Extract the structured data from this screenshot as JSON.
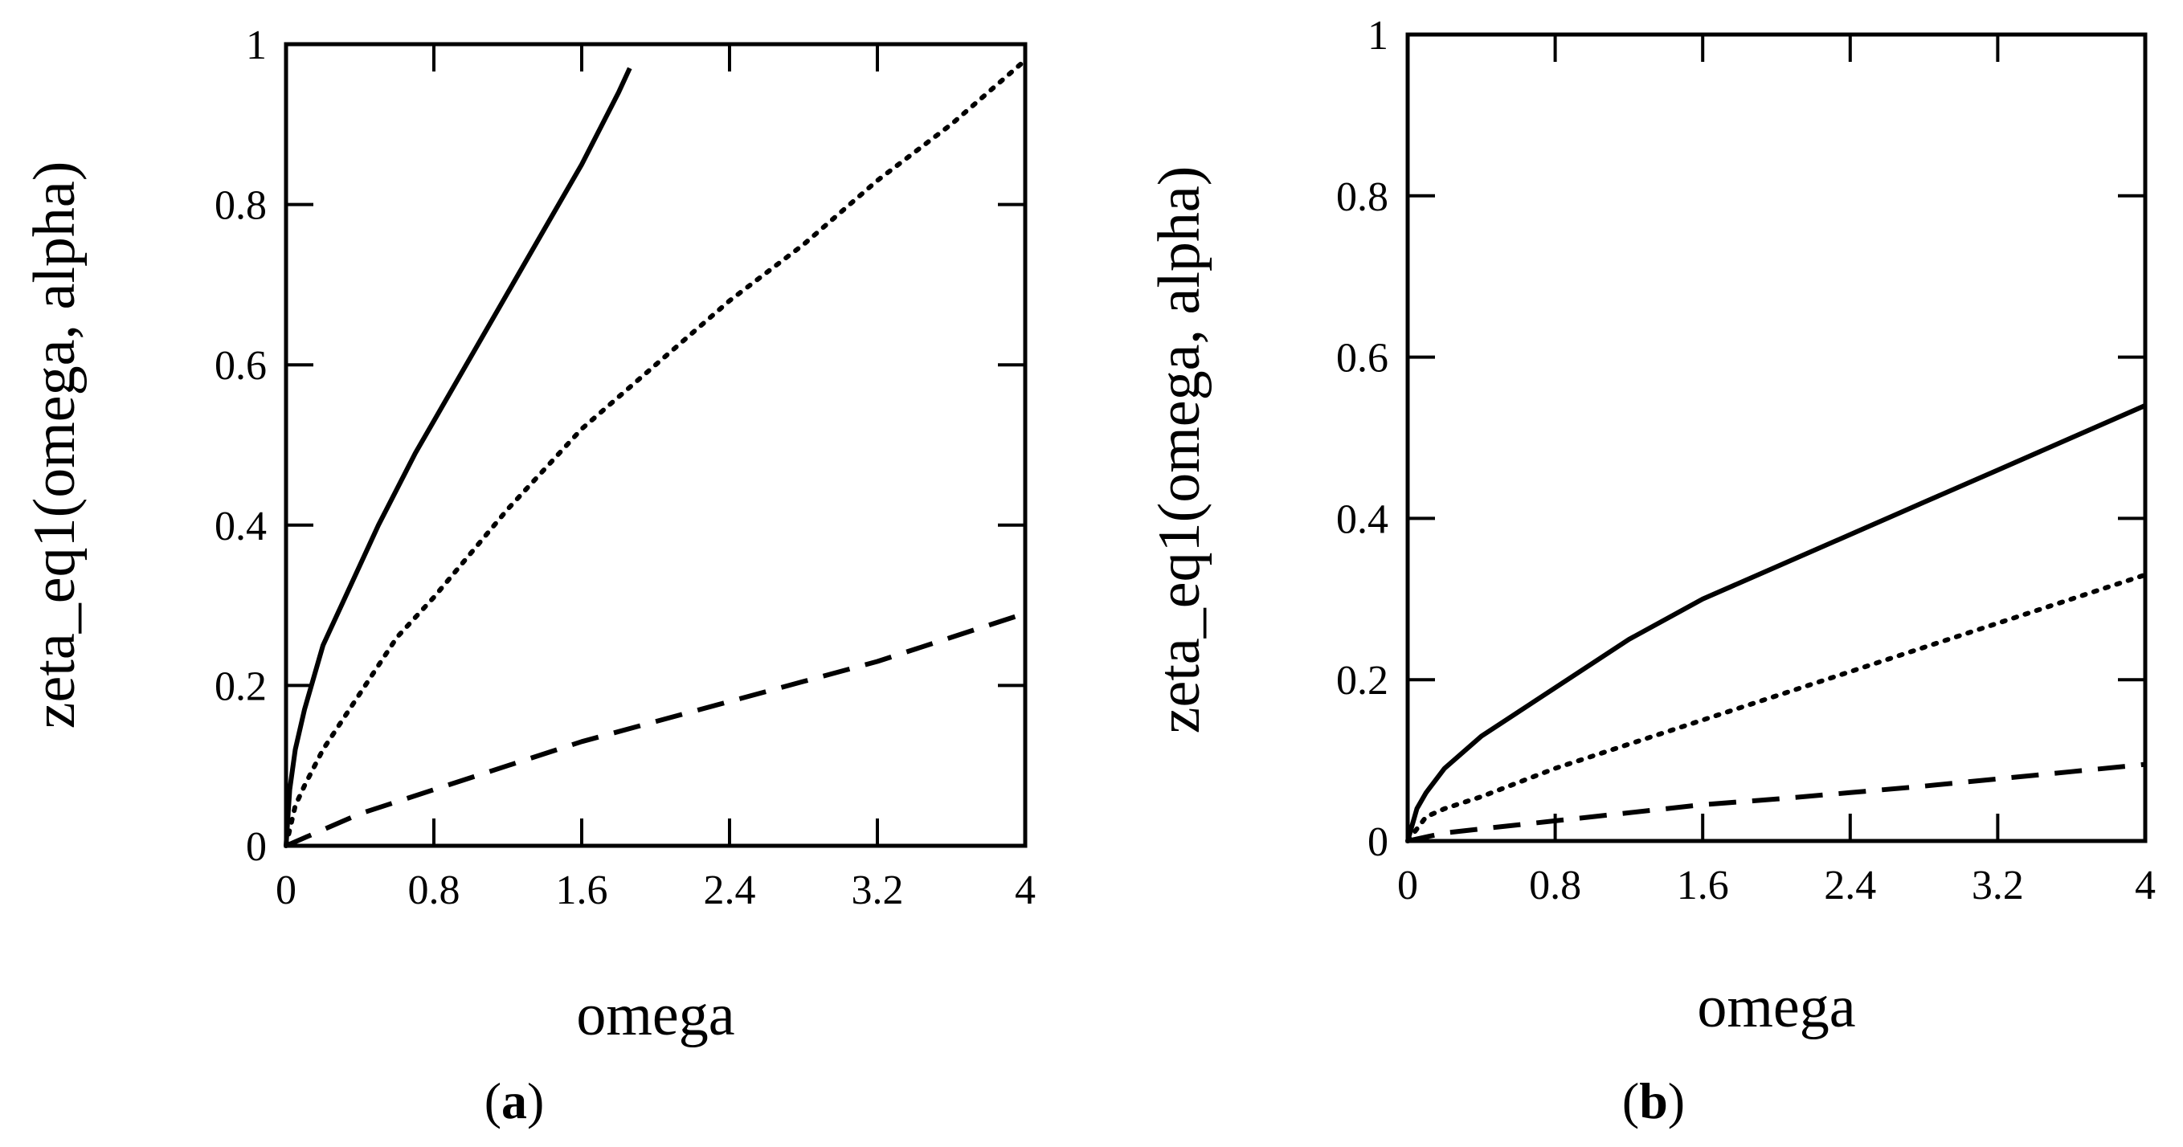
{
  "colors": {
    "ink": "#000000",
    "background": "#ffffff"
  },
  "chart_data": [
    {
      "type": "line",
      "panel_label_open": "(",
      "panel_label_letter": "a",
      "panel_label_close": ")",
      "xlabel": "omega",
      "ylabel": "zeta_eq1(omega, alpha)",
      "xlim": [
        0,
        4
      ],
      "ylim": [
        0,
        1
      ],
      "xticks": [
        "0",
        "0.8",
        "1.6",
        "2.4",
        "3.2",
        "4"
      ],
      "yticks": [
        "0",
        "0.2",
        "0.4",
        "0.6",
        "0.8",
        "1"
      ],
      "xtick_values": [
        0,
        0.8,
        1.6,
        2.4,
        3.2,
        4
      ],
      "ytick_values": [
        0,
        0.2,
        0.4,
        0.6,
        0.8,
        1
      ],
      "series": [
        {
          "style": "solid",
          "x": [
            0,
            0.02,
            0.05,
            0.1,
            0.2,
            0.3,
            0.5,
            0.7,
            0.8,
            1.0,
            1.2,
            1.4,
            1.6,
            1.8,
            1.86
          ],
          "y": [
            0,
            0.07,
            0.12,
            0.17,
            0.25,
            0.3,
            0.4,
            0.49,
            0.53,
            0.61,
            0.69,
            0.77,
            0.85,
            0.94,
            0.97
          ]
        },
        {
          "style": "dotted",
          "x": [
            0,
            0.05,
            0.1,
            0.2,
            0.4,
            0.6,
            0.8,
            1.2,
            1.6,
            2.0,
            2.4,
            2.8,
            3.2,
            3.6,
            4.0
          ],
          "y": [
            0,
            0.05,
            0.075,
            0.12,
            0.19,
            0.26,
            0.31,
            0.42,
            0.52,
            0.6,
            0.68,
            0.75,
            0.83,
            0.9,
            0.98
          ]
        },
        {
          "style": "dashed",
          "x": [
            0,
            0.1,
            0.2,
            0.4,
            0.8,
            1.2,
            1.6,
            2.0,
            2.4,
            2.8,
            3.2,
            3.6,
            4.0
          ],
          "y": [
            0,
            0.01,
            0.02,
            0.04,
            0.07,
            0.1,
            0.13,
            0.155,
            0.18,
            0.205,
            0.23,
            0.26,
            0.29
          ]
        }
      ]
    },
    {
      "type": "line",
      "panel_label_open": "(",
      "panel_label_letter": "b",
      "panel_label_close": ")",
      "xlabel": "omega",
      "ylabel": "zeta_eq1(omega, alpha)",
      "xlim": [
        0,
        4
      ],
      "ylim": [
        0,
        1
      ],
      "xticks": [
        "0",
        "0.8",
        "1.6",
        "2.4",
        "3.2",
        "4"
      ],
      "yticks": [
        "0",
        "0.2",
        "0.4",
        "0.6",
        "0.8",
        "1"
      ],
      "xtick_values": [
        0,
        0.8,
        1.6,
        2.4,
        3.2,
        4
      ],
      "ytick_values": [
        0,
        0.2,
        0.4,
        0.6,
        0.8,
        1
      ],
      "series": [
        {
          "style": "solid",
          "x": [
            0,
            0.05,
            0.1,
            0.2,
            0.4,
            0.6,
            0.8,
            1.2,
            1.6,
            2.0,
            2.4,
            2.8,
            3.2,
            3.6,
            4.0
          ],
          "y": [
            0,
            0.04,
            0.06,
            0.09,
            0.13,
            0.16,
            0.19,
            0.25,
            0.3,
            0.34,
            0.38,
            0.42,
            0.46,
            0.5,
            0.54
          ]
        },
        {
          "style": "dotted",
          "x": [
            0,
            0.1,
            0.2,
            0.4,
            0.8,
            1.2,
            1.6,
            2.0,
            2.4,
            2.8,
            3.2,
            3.6,
            4.0
          ],
          "y": [
            0,
            0.03,
            0.04,
            0.055,
            0.09,
            0.12,
            0.15,
            0.18,
            0.21,
            0.24,
            0.27,
            0.3,
            0.33
          ]
        },
        {
          "style": "dashed",
          "x": [
            0,
            0.2,
            0.4,
            0.8,
            1.2,
            1.6,
            2.0,
            2.4,
            2.8,
            3.2,
            3.6,
            4.0
          ],
          "y": [
            0,
            0.01,
            0.015,
            0.025,
            0.035,
            0.045,
            0.052,
            0.06,
            0.068,
            0.077,
            0.086,
            0.095
          ]
        }
      ]
    }
  ]
}
